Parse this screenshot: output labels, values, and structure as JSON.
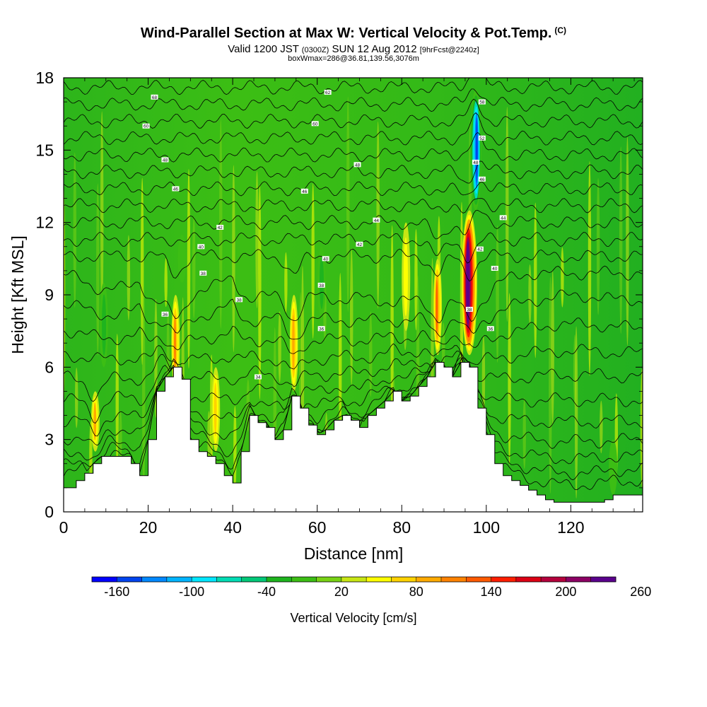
{
  "header": {
    "title_main": "Wind-Parallel Section at Max W: Vertical Velocity & Pot.Temp.",
    "title_mark": "(C)",
    "valid_prefix": "Valid 1200 JST",
    "valid_utc": "(0300Z)",
    "valid_date": "SUN 12 Aug 2012",
    "forecast_note": "[9hrFcst@2240z]",
    "box_info": "boxWmax=286@36.81,139.56,3076m"
  },
  "chart_data": {
    "type": "heatmap",
    "xlabel": "Distance [nm]",
    "ylabel": "Height [Kft MSL]",
    "xlim": [
      0,
      137
    ],
    "ylim": [
      0,
      18
    ],
    "x_ticks": [
      "0",
      "20",
      "40",
      "60",
      "80",
      "100",
      "120"
    ],
    "y_ticks": [
      "0",
      "3",
      "6",
      "9",
      "12",
      "15",
      "18"
    ],
    "grid": false,
    "colorbar": {
      "title": "Vertical Velocity [cm/s]",
      "tick_labels": [
        "-160",
        "-100",
        "-40",
        "20",
        "80",
        "140",
        "200",
        "260"
      ],
      "colors": [
        "#0000ff",
        "#0044ee",
        "#0088ff",
        "#00b4ff",
        "#00e6ff",
        "#00dcb4",
        "#00c878",
        "#1eb41e",
        "#3cbe14",
        "#78d214",
        "#c8e614",
        "#ffff00",
        "#ffd200",
        "#ffaa00",
        "#ff8200",
        "#ff5a00",
        "#ff1e00",
        "#dc0014",
        "#b4003c",
        "#8c0064",
        "#5a008c"
      ]
    },
    "terrain_profile": {
      "x": [
        0,
        3,
        5,
        7,
        9,
        11,
        13,
        16,
        18,
        20,
        22,
        24,
        26,
        28,
        30,
        32,
        34,
        36,
        38,
        40,
        42,
        44,
        46,
        48,
        50,
        52,
        54,
        56,
        58,
        60,
        62,
        64,
        66,
        68,
        70,
        72,
        74,
        76,
        78,
        80,
        82,
        84,
        86,
        88,
        90,
        92,
        94,
        96,
        98,
        100,
        102,
        104,
        106,
        108,
        110,
        112,
        114,
        116,
        118,
        120,
        122,
        124,
        126,
        128,
        130,
        132,
        135,
        137
      ],
      "height": [
        1.0,
        1.3,
        1.6,
        2.0,
        2.3,
        2.3,
        2.3,
        2.0,
        1.5,
        3.0,
        5.0,
        5.6,
        6.0,
        5.5,
        3.0,
        2.5,
        2.3,
        2.0,
        1.5,
        1.2,
        2.5,
        4.0,
        3.7,
        3.5,
        3.0,
        3.4,
        4.8,
        4.3,
        3.6,
        3.2,
        3.4,
        3.8,
        4.0,
        3.8,
        3.5,
        4.0,
        4.3,
        4.6,
        5.0,
        4.6,
        4.8,
        5.2,
        5.6,
        6.2,
        6.0,
        5.6,
        6.2,
        6.0,
        4.3,
        3.2,
        2.0,
        1.5,
        1.3,
        1.1,
        0.9,
        0.7,
        0.5,
        0.4,
        0.4,
        0.4,
        0.4,
        0.4,
        0.4,
        0.5,
        0.7,
        0.7,
        0.7,
        0.7
      ]
    },
    "vertical_velocity_features": [
      {
        "x": 7.5,
        "z_min": 2.5,
        "z_max": 5.0,
        "w": 70
      },
      {
        "x": 9.5,
        "z_min": 6.0,
        "z_max": 9.5,
        "w": -40
      },
      {
        "x": 26.5,
        "z_min": 5.0,
        "z_max": 9.0,
        "w": 90
      },
      {
        "x": 28.0,
        "z_min": 9.5,
        "z_max": 11.5,
        "w": -30
      },
      {
        "x": 36.0,
        "z_min": 2.5,
        "z_max": 6.0,
        "w": 50
      },
      {
        "x": 54.5,
        "z_min": 5.0,
        "z_max": 9.0,
        "w": 80
      },
      {
        "x": 61.0,
        "z_min": 8.0,
        "z_max": 11.0,
        "w": -40
      },
      {
        "x": 81.0,
        "z_min": 7.5,
        "z_max": 12.0,
        "w": 40
      },
      {
        "x": 88.5,
        "z_min": 6.5,
        "z_max": 10.5,
        "w": 110
      },
      {
        "x": 96.0,
        "z_min": 6.5,
        "z_max": 12.5,
        "w": 250
      },
      {
        "x": 97.5,
        "z_min": 12.5,
        "z_max": 17.5,
        "w": -160
      },
      {
        "x": 130.0,
        "z_min": 0.7,
        "z_max": 3.0,
        "w": -30
      }
    ],
    "theta_contour_base_heights": [
      1.3,
      2.2,
      3.1,
      4.0,
      4.9,
      5.8,
      6.7,
      7.5,
      8.3,
      9.1,
      9.9,
      10.6,
      11.3,
      12.0,
      12.7,
      13.4,
      14.1,
      14.8,
      15.5,
      16.2,
      16.9,
      17.6
    ],
    "theta_contour_labels": [
      {
        "x": 21.5,
        "z": 17.2,
        "text": "68"
      },
      {
        "x": 19.5,
        "z": 16.0,
        "text": "60"
      },
      {
        "x": 24.0,
        "z": 14.6,
        "text": "48"
      },
      {
        "x": 26.5,
        "z": 13.4,
        "text": "46"
      },
      {
        "x": 37.0,
        "z": 11.8,
        "text": "42"
      },
      {
        "x": 32.5,
        "z": 11.0,
        "text": "40"
      },
      {
        "x": 33.0,
        "z": 9.9,
        "text": "38"
      },
      {
        "x": 24.0,
        "z": 8.2,
        "text": "36"
      },
      {
        "x": 41.5,
        "z": 8.8,
        "text": "38"
      },
      {
        "x": 46.0,
        "z": 5.6,
        "text": "34"
      },
      {
        "x": 59.5,
        "z": 16.1,
        "text": "60"
      },
      {
        "x": 62.5,
        "z": 17.4,
        "text": "62"
      },
      {
        "x": 57.0,
        "z": 13.3,
        "text": "46"
      },
      {
        "x": 69.5,
        "z": 14.4,
        "text": "48"
      },
      {
        "x": 74.0,
        "z": 12.1,
        "text": "44"
      },
      {
        "x": 70.0,
        "z": 11.1,
        "text": "42"
      },
      {
        "x": 62.0,
        "z": 10.5,
        "text": "40"
      },
      {
        "x": 61.0,
        "z": 9.4,
        "text": "38"
      },
      {
        "x": 61.0,
        "z": 7.6,
        "text": "36"
      },
      {
        "x": 99.0,
        "z": 17.0,
        "text": "58"
      },
      {
        "x": 99.0,
        "z": 15.5,
        "text": "52"
      },
      {
        "x": 97.5,
        "z": 14.5,
        "text": "48"
      },
      {
        "x": 99.0,
        "z": 13.8,
        "text": "46"
      },
      {
        "x": 104.0,
        "z": 12.2,
        "text": "44"
      },
      {
        "x": 98.5,
        "z": 10.9,
        "text": "42"
      },
      {
        "x": 102.0,
        "z": 10.1,
        "text": "40"
      },
      {
        "x": 96.0,
        "z": 8.4,
        "text": "38"
      },
      {
        "x": 101.0,
        "z": 7.6,
        "text": "36"
      }
    ]
  }
}
